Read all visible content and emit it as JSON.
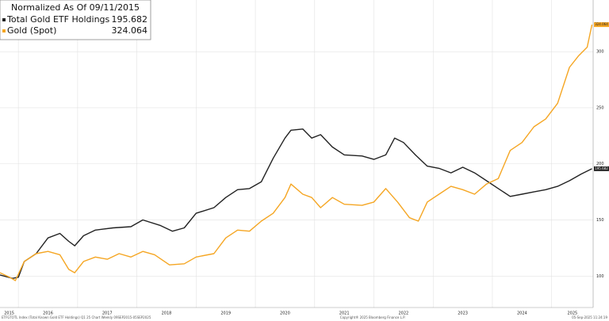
{
  "chart_data": {
    "type": "line",
    "legend_title": "Normalized As Of 09/11/2015",
    "footer_left": "ETFGTOTL Index (Total Known Gold ETF Holdings) Q1 25 Chart Weekly 09SEP2015-05SEP2025",
    "footer_center": "Copyright® 2025 Bloomberg Finance L.P.",
    "footer_right": "05-Sep-2025 11:24:19",
    "xlim": [
      2015.69,
      2025.7
    ],
    "xticks": [
      2015,
      2016,
      2017,
      2018,
      2019,
      2020,
      2021,
      2022,
      2023,
      2024,
      2025
    ],
    "ylim": [
      72,
      346
    ],
    "yticks": [
      100,
      150,
      200,
      250,
      300
    ],
    "grid": true,
    "series": [
      {
        "name": "Total Gold ETF Holdings",
        "color": "#222222",
        "x": [
          2015.69,
          2015.9,
          2016.0,
          2016.1,
          2016.3,
          2016.5,
          2016.7,
          2016.85,
          2016.95,
          2017.1,
          2017.3,
          2017.6,
          2017.9,
          2018.1,
          2018.4,
          2018.6,
          2018.8,
          2019.0,
          2019.3,
          2019.5,
          2019.7,
          2019.9,
          2020.1,
          2020.3,
          2020.5,
          2020.6,
          2020.8,
          2020.95,
          2021.1,
          2021.3,
          2021.5,
          2021.8,
          2022.0,
          2022.2,
          2022.35,
          2022.5,
          2022.7,
          2022.9,
          2023.1,
          2023.3,
          2023.5,
          2023.7,
          2023.9,
          2024.1,
          2024.3,
          2024.5,
          2024.7,
          2024.9,
          2025.1,
          2025.3,
          2025.5,
          2025.68
        ],
        "values": [
          101,
          98,
          99,
          113,
          120,
          134,
          138,
          131,
          127,
          136,
          141,
          143,
          144,
          150,
          145,
          140,
          143,
          156,
          161,
          170,
          177,
          178,
          184,
          205,
          223,
          230,
          231,
          223,
          226,
          215,
          208,
          207,
          204,
          208,
          223,
          219,
          208,
          198,
          196,
          192,
          197,
          192,
          185,
          178,
          171,
          173,
          175,
          177,
          180,
          185,
          191,
          195.682
        ]
      },
      {
        "name": "Gold (Spot)",
        "color": "#f5a623",
        "x": [
          2015.69,
          2015.85,
          2015.95,
          2016.1,
          2016.3,
          2016.5,
          2016.7,
          2016.85,
          2016.95,
          2017.1,
          2017.3,
          2017.5,
          2017.7,
          2017.9,
          2018.1,
          2018.3,
          2018.55,
          2018.8,
          2019.0,
          2019.3,
          2019.5,
          2019.7,
          2019.9,
          2020.1,
          2020.3,
          2020.5,
          2020.6,
          2020.8,
          2020.95,
          2021.1,
          2021.3,
          2021.5,
          2021.8,
          2022.0,
          2022.2,
          2022.4,
          2022.6,
          2022.75,
          2022.9,
          2023.1,
          2023.3,
          2023.5,
          2023.7,
          2023.9,
          2024.1,
          2024.3,
          2024.5,
          2024.7,
          2024.9,
          2025.1,
          2025.3,
          2025.45,
          2025.6,
          2025.68
        ],
        "values": [
          103,
          99,
          96,
          113,
          120,
          122,
          119,
          106,
          103,
          113,
          117,
          115,
          120,
          117,
          122,
          119,
          110,
          111,
          117,
          120,
          134,
          141,
          140,
          149,
          156,
          170,
          182,
          173,
          170,
          161,
          170,
          164,
          163,
          166,
          178,
          166,
          152,
          149,
          166,
          173,
          180,
          177,
          173,
          182,
          187,
          212,
          219,
          233,
          240,
          254,
          286,
          296,
          304,
          324.064
        ]
      }
    ]
  }
}
